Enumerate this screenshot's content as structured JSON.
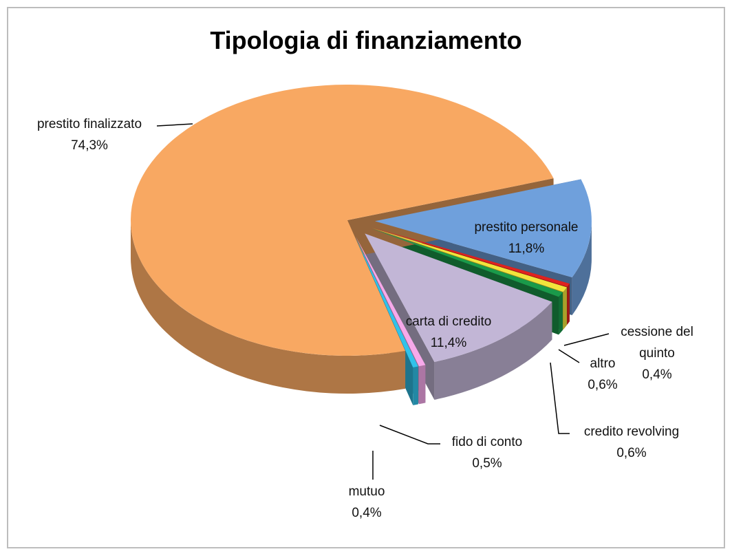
{
  "chart_data": {
    "type": "pie",
    "title": "Tipologia di finanziamento",
    "categories": [
      "prestito personale",
      "cessione del quinto",
      "altro",
      "credito revolving",
      "carta di credito",
      "fido di conto",
      "mutuo",
      "prestito finalizzato"
    ],
    "values": [
      11.8,
      0.4,
      0.6,
      0.6,
      11.4,
      0.5,
      0.4,
      74.3
    ],
    "value_labels": [
      "11,8%",
      "0,4%",
      "0,6%",
      "0,6%",
      "11,4%",
      "0,5%",
      "0,4%",
      "74,3%"
    ],
    "colors": [
      "#6fa0dc",
      "#e0231f",
      "#f2e43c",
      "#1a9a4a",
      "#c2b6d6",
      "#f6a9ea",
      "#31c2ea",
      "#f8a862"
    ]
  }
}
